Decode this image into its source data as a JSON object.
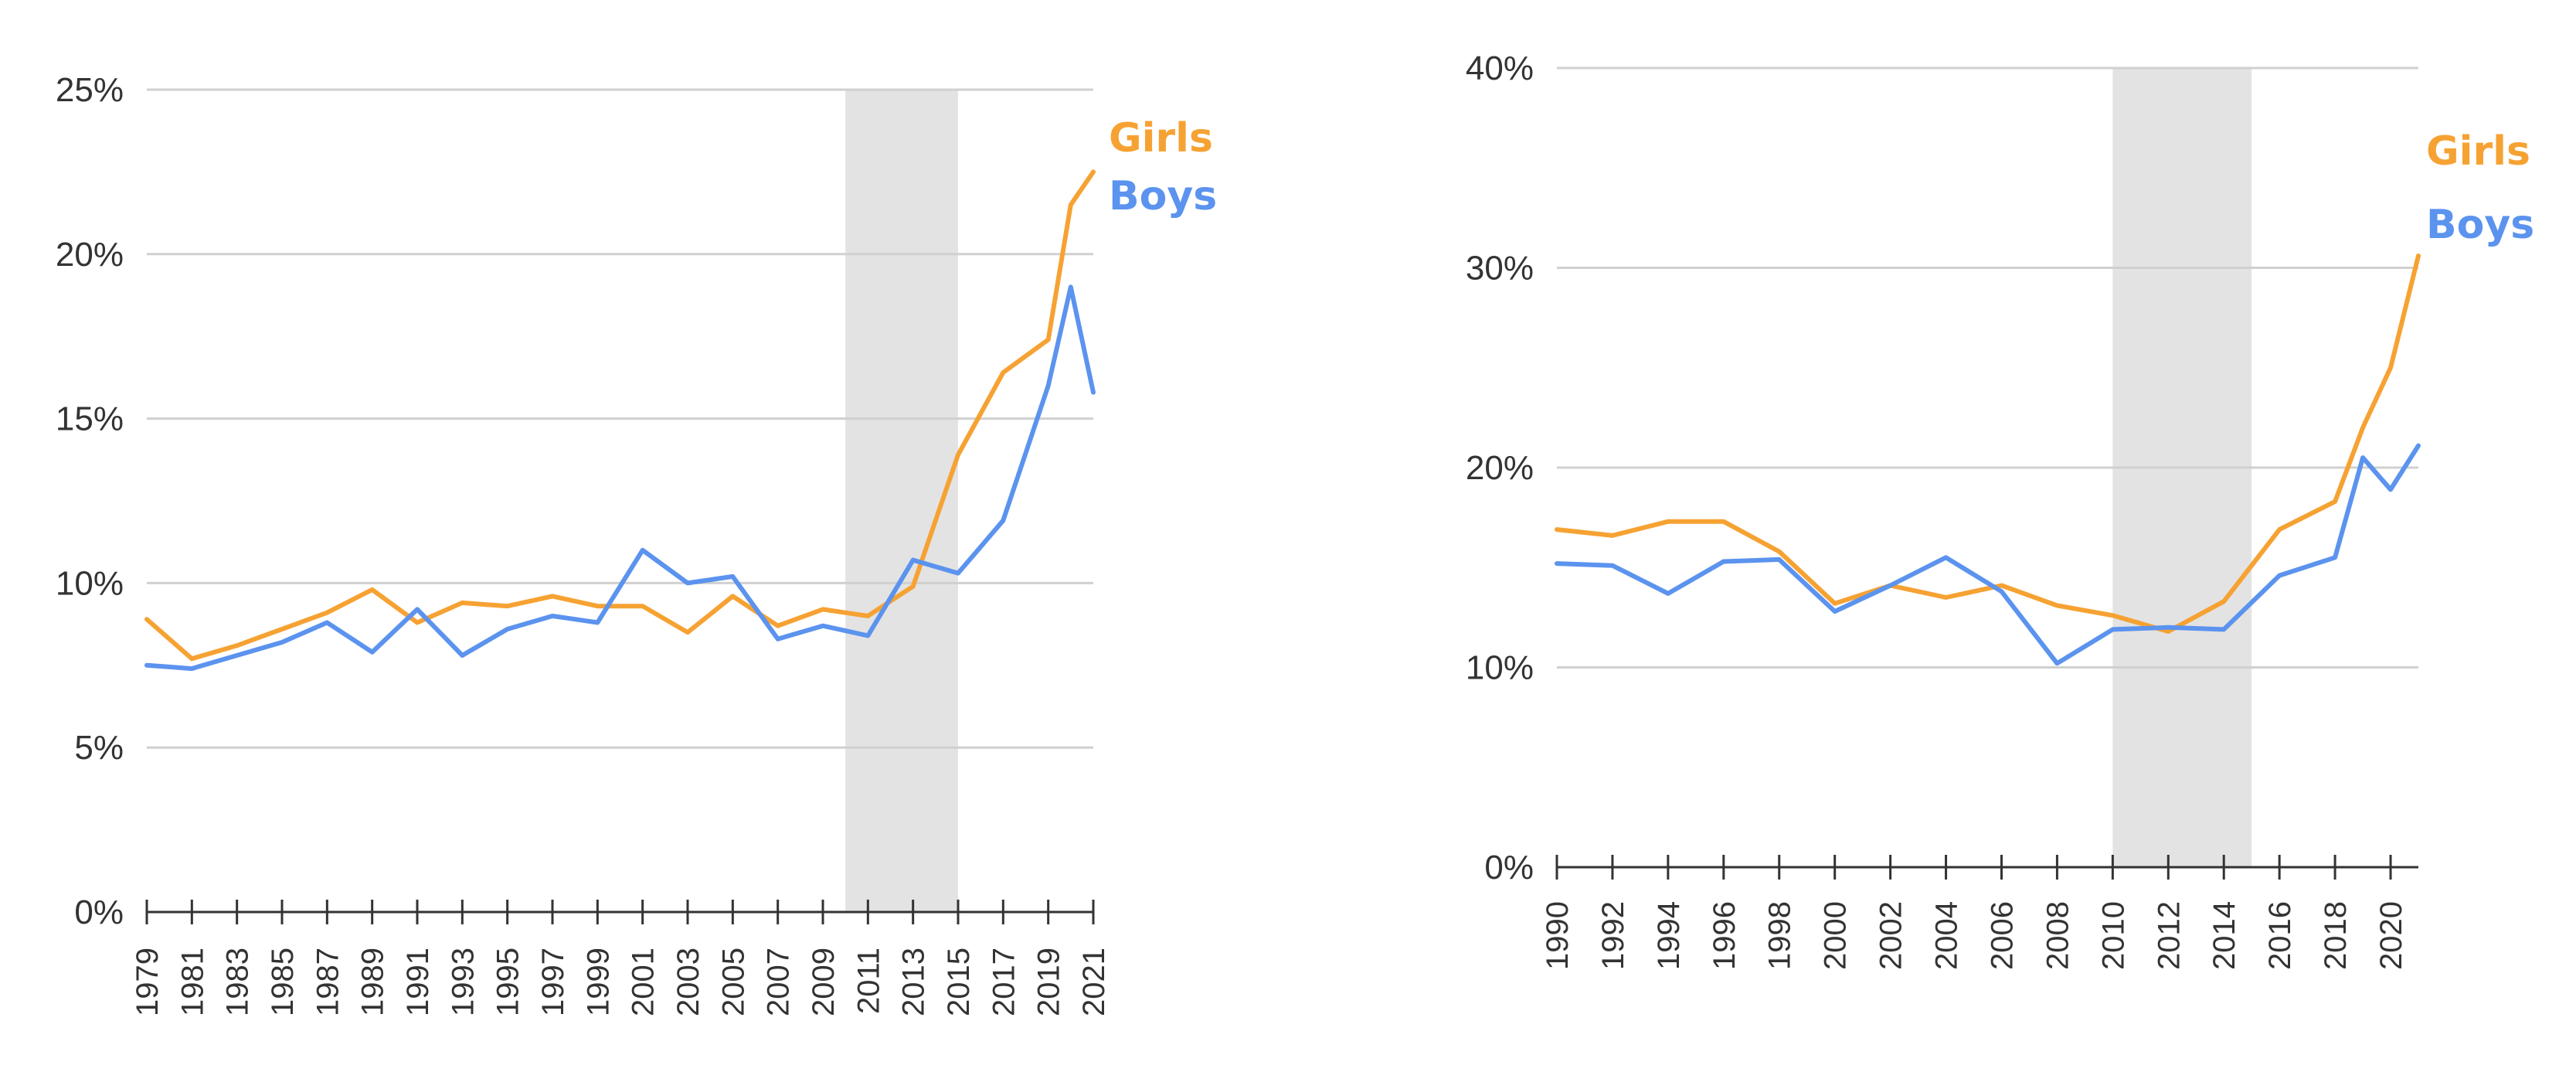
{
  "chart_data": [
    {
      "type": "line",
      "title": "",
      "xlabel": "",
      "ylabel": "",
      "ylim": [
        0,
        25
      ],
      "yticks": [
        "0%",
        "5%",
        "10%",
        "15%",
        "20%",
        "25%"
      ],
      "ytick_values": [
        0,
        5,
        10,
        15,
        20,
        25
      ],
      "x_tick_labels": [
        "1979",
        "1981",
        "1983",
        "1985",
        "1987",
        "1989",
        "1991",
        "1993",
        "1995",
        "1997",
        "1999",
        "2001",
        "2003",
        "2005",
        "2007",
        "2009",
        "2011",
        "2013",
        "2015",
        "2017",
        "2019",
        "2021"
      ],
      "grid": true,
      "shaded_region": [
        2010,
        2015
      ],
      "x": [
        1979,
        1980,
        1981,
        1982,
        1983,
        1984,
        1985,
        1986,
        1987,
        1988,
        1989,
        1990,
        1991,
        1992,
        1993,
        1994,
        1995,
        1996,
        1997,
        1998,
        1999,
        2000,
        2001,
        2002,
        2003,
        2004,
        2005,
        2006,
        2007,
        2008,
        2009,
        2010,
        2011,
        2012,
        2013,
        2014,
        2015,
        2016,
        2017,
        2018,
        2019,
        2020,
        2021
      ],
      "series": [
        {
          "name": "Girls",
          "color": "#f6a233",
          "values": [
            8.9,
            8.3,
            7.7,
            7.9,
            8.1,
            8.35,
            8.6,
            8.85,
            9.1,
            9.45,
            9.8,
            9.3,
            8.8,
            9.1,
            9.4,
            9.35,
            9.3,
            9.45,
            9.6,
            9.45,
            9.3,
            9.3,
            9.3,
            8.9,
            8.5,
            9.05,
            9.6,
            9.15,
            8.7,
            8.95,
            9.2,
            9.1,
            9.0,
            9.45,
            9.9,
            11.9,
            13.9,
            15.15,
            16.4,
            16.9,
            17.4,
            21.5,
            22.5
          ]
        },
        {
          "name": "Boys",
          "color": "#5b93ee",
          "values": [
            7.5,
            7.45,
            7.4,
            7.6,
            7.8,
            8.0,
            8.2,
            8.5,
            8.8,
            8.35,
            7.9,
            8.55,
            9.2,
            8.5,
            7.8,
            8.2,
            8.6,
            8.8,
            9.0,
            8.9,
            8.8,
            9.9,
            11.0,
            10.5,
            10.0,
            10.1,
            10.2,
            9.25,
            8.3,
            8.5,
            8.7,
            8.55,
            8.4,
            9.55,
            10.7,
            10.5,
            10.3,
            11.1,
            11.9,
            13.95,
            16.0,
            19.0,
            15.8
          ]
        }
      ]
    },
    {
      "type": "line",
      "title": "",
      "xlabel": "",
      "ylabel": "",
      "ylim": [
        0,
        40
      ],
      "yticks": [
        "0%",
        "10%",
        "20%",
        "30%",
        "40%"
      ],
      "ytick_values": [
        0,
        10,
        20,
        30,
        40
      ],
      "x_tick_labels": [
        "1990",
        "1992",
        "1994",
        "1996",
        "1998",
        "2000",
        "2002",
        "2004",
        "2006",
        "2008",
        "2010",
        "2012",
        "2014",
        "2016",
        "2018",
        "2020"
      ],
      "grid": true,
      "shaded_region": [
        2010,
        2015
      ],
      "x": [
        1990,
        1992,
        1994,
        1996,
        1998,
        2000,
        2002,
        2004,
        2006,
        2008,
        2010,
        2012,
        2014,
        2016,
        2018,
        2019,
        2020,
        2021
      ],
      "series": [
        {
          "name": "Girls",
          "color": "#f6a233",
          "values": [
            16.9,
            16.6,
            17.3,
            17.3,
            15.8,
            13.2,
            14.1,
            13.5,
            14.1,
            13.1,
            12.6,
            11.8,
            13.3,
            16.9,
            18.3,
            22.0,
            25.0,
            30.6
          ]
        },
        {
          "name": "Boys",
          "color": "#5b93ee",
          "values": [
            15.2,
            15.1,
            13.7,
            15.3,
            15.4,
            12.8,
            14.1,
            15.5,
            13.8,
            10.2,
            11.9,
            12.0,
            11.9,
            14.6,
            15.5,
            20.5,
            18.9,
            21.1
          ]
        }
      ]
    }
  ]
}
